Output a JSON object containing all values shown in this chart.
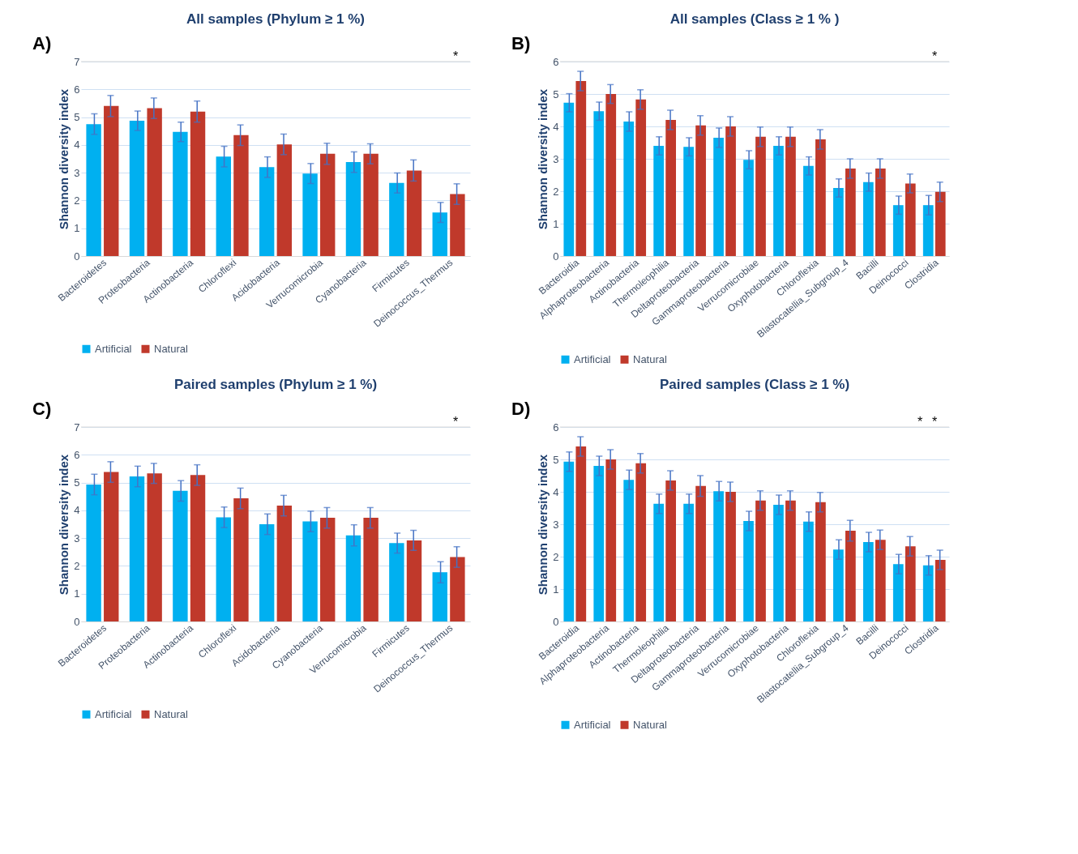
{
  "chart_data": [
    {
      "type": "bar",
      "title": "All samples (Phylum  ≥ 1 %)",
      "ylabel": "Shannon diversity index",
      "categories": [
        "Bacteroidetes",
        "Proteobacteria",
        "Actinobacteria",
        "Chloroflexi",
        "Acidobacteria",
        "Verrucomicrobia",
        "Cyanobacteria",
        "Firmicutes",
        "Deinococcus_Thermus"
      ],
      "series": [
        {
          "name": "Artificial",
          "color": "#00b0f0",
          "values": [
            4.75,
            4.87,
            4.47,
            3.58,
            3.2,
            2.97,
            3.38,
            2.63,
            1.57
          ],
          "errors": [
            0.37,
            0.35,
            0.35,
            0.37,
            0.37,
            0.36,
            0.37,
            0.36,
            0.36
          ]
        },
        {
          "name": "Natural",
          "color": "#c0392b",
          "values": [
            5.4,
            5.32,
            5.2,
            4.35,
            4.02,
            3.68,
            3.68,
            3.08,
            2.23
          ],
          "errors": [
            0.38,
            0.37,
            0.38,
            0.37,
            0.37,
            0.38,
            0.36,
            0.38,
            0.37
          ]
        }
      ],
      "ylim": [
        0,
        7
      ],
      "yticks": [
        0,
        1,
        2,
        3,
        4,
        5,
        6,
        7
      ],
      "grid": "y",
      "legend": "bottom",
      "annotations": [
        "A)",
        "*"
      ]
    },
    {
      "type": "bar",
      "title": "All samples (Class  ≥ 1 % )",
      "ylabel": "Shannon diversity index",
      "categories": [
        "Bacteroidia",
        "Alphaproteobacteria",
        "Actinobacteria",
        "Thermoleophilia",
        "Deltaproteobacteria",
        "Gammaproteobacteria",
        "Verrucomicrobiae",
        "Oxyphotobacteria",
        "Chloroflexia",
        "Blastocatellia_Subgroup_4",
        "Bacilli",
        "Deinococci",
        "Clostridia"
      ],
      "series": [
        {
          "name": "Artificial",
          "color": "#00b0f0",
          "values": [
            4.73,
            4.47,
            4.15,
            3.4,
            3.37,
            3.65,
            2.97,
            3.4,
            2.78,
            2.1,
            2.28,
            1.57,
            1.57
          ],
          "errors": [
            0.28,
            0.28,
            0.3,
            0.28,
            0.28,
            0.3,
            0.28,
            0.28,
            0.28,
            0.28,
            0.28,
            0.28,
            0.3
          ]
        },
        {
          "name": "Natural",
          "color": "#c0392b",
          "values": [
            5.4,
            5.0,
            4.83,
            4.2,
            4.03,
            4.0,
            3.68,
            3.68,
            3.6,
            2.7,
            2.7,
            2.24,
            1.98
          ],
          "errors": [
            0.3,
            0.29,
            0.3,
            0.3,
            0.3,
            0.3,
            0.3,
            0.3,
            0.3,
            0.3,
            0.3,
            0.29,
            0.3
          ]
        }
      ],
      "ylim": [
        0,
        6
      ],
      "yticks": [
        0,
        1,
        2,
        3,
        4,
        5,
        6
      ],
      "grid": "y",
      "legend": "bottom",
      "annotations": [
        "B)",
        "*"
      ]
    },
    {
      "type": "bar",
      "title": "Paired samples (Phylum ≥  1 %)",
      "ylabel": "Shannon diversity index",
      "categories": [
        "Bacteroidetes",
        "Proteobacteria",
        "Actinobacteria",
        "Chloroflexi",
        "Acidobacteria",
        "Cyanobacteria",
        "Verrucomicrobia",
        "Firmicutes",
        "Deinococcus_Thermus"
      ],
      "series": [
        {
          "name": "Artificial",
          "color": "#00b0f0",
          "values": [
            4.93,
            5.22,
            4.7,
            3.75,
            3.5,
            3.6,
            3.1,
            2.82,
            1.77
          ],
          "errors": [
            0.37,
            0.37,
            0.37,
            0.37,
            0.37,
            0.37,
            0.38,
            0.36,
            0.38
          ]
        },
        {
          "name": "Natural",
          "color": "#c0392b",
          "values": [
            5.38,
            5.33,
            5.27,
            4.43,
            4.17,
            3.73,
            3.73,
            2.92,
            2.32
          ],
          "errors": [
            0.37,
            0.36,
            0.37,
            0.37,
            0.37,
            0.37,
            0.37,
            0.36,
            0.37
          ]
        }
      ],
      "ylim": [
        0,
        7
      ],
      "yticks": [
        0,
        1,
        2,
        3,
        4,
        5,
        6,
        7
      ],
      "grid": "y",
      "legend": "bottom",
      "annotations": [
        "C)",
        "*"
      ]
    },
    {
      "type": "bar",
      "title": "Paired samples (Class ≥ 1 %)",
      "ylabel": "Shannon diversity index",
      "categories": [
        "Bacteroidia",
        "Alphaproteobacteria",
        "Actinobacteria",
        "Thermoleophilia",
        "Deltaproteobacteria",
        "Gammaproteobacteria",
        "Verrucomicrobiae",
        "Oxyphotobacteria",
        "Chloroflexia",
        "Blastocatellia_Subgroup_4",
        "Bacilli",
        "Deinococci",
        "Clostridia"
      ],
      "series": [
        {
          "name": "Artificial",
          "color": "#00b0f0",
          "values": [
            4.93,
            4.8,
            4.37,
            3.63,
            3.63,
            4.02,
            3.1,
            3.6,
            3.08,
            2.22,
            2.45,
            1.77,
            1.73
          ],
          "errors": [
            0.3,
            0.3,
            0.3,
            0.3,
            0.3,
            0.3,
            0.3,
            0.3,
            0.3,
            0.3,
            0.3,
            0.3,
            0.3
          ]
        },
        {
          "name": "Natural",
          "color": "#c0392b",
          "values": [
            5.4,
            5.0,
            4.88,
            4.35,
            4.18,
            4.0,
            3.73,
            3.73,
            3.68,
            2.8,
            2.52,
            2.32,
            1.9
          ],
          "errors": [
            0.3,
            0.3,
            0.3,
            0.3,
            0.32,
            0.3,
            0.3,
            0.3,
            0.3,
            0.32,
            0.3,
            0.3,
            0.3
          ]
        }
      ],
      "ylim": [
        0,
        6
      ],
      "yticks": [
        0,
        1,
        2,
        3,
        4,
        5,
        6
      ],
      "grid": "y",
      "legend": "bottom",
      "annotations": [
        "D)",
        "*",
        "*"
      ]
    }
  ]
}
